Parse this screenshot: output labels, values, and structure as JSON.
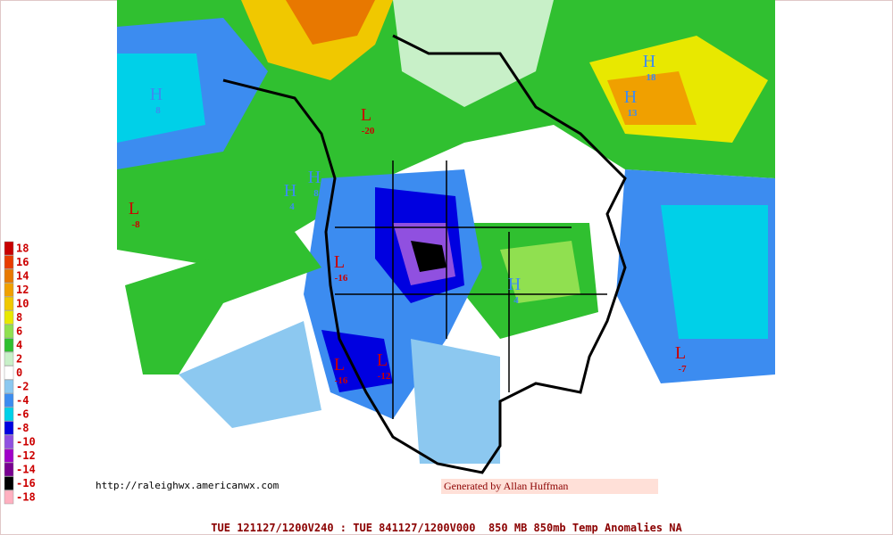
{
  "legend": {
    "items": [
      {
        "label": "18",
        "color": "#c80000"
      },
      {
        "label": "16",
        "color": "#e83c00"
      },
      {
        "label": "14",
        "color": "#e87800"
      },
      {
        "label": "12",
        "color": "#f0a000"
      },
      {
        "label": "10",
        "color": "#f0c800"
      },
      {
        "label": "8",
        "color": "#e8e800"
      },
      {
        "label": "6",
        "color": "#90e050"
      },
      {
        "label": "4",
        "color": "#30c030"
      },
      {
        "label": "2",
        "color": "#c8f0c8"
      },
      {
        "label": "0",
        "color": "#ffffff"
      },
      {
        "label": "-2",
        "color": "#8cc8f0"
      },
      {
        "label": "-4",
        "color": "#3c8cf0"
      },
      {
        "label": "-6",
        "color": "#00d0e8"
      },
      {
        "label": "-8",
        "color": "#0000e0"
      },
      {
        "label": "-10",
        "color": "#9050e0"
      },
      {
        "label": "-12",
        "color": "#a000c8"
      },
      {
        "label": "-14",
        "color": "#780090"
      },
      {
        "label": "-16",
        "color": "#000000"
      },
      {
        "label": "-18",
        "color": "#ffb0c0"
      }
    ]
  },
  "map_labels": [
    {
      "letter": "L",
      "value": "-8"
    },
    {
      "letter": "H",
      "value": "8"
    },
    {
      "letter": "H",
      "value": "4"
    },
    {
      "letter": "L",
      "value": "-16"
    },
    {
      "letter": "L",
      "value": "-16"
    },
    {
      "letter": "H",
      "value": "13"
    },
    {
      "letter": "H",
      "value": "18"
    },
    {
      "letter": "H",
      "value": "4"
    },
    {
      "letter": "L",
      "value": "-7"
    },
    {
      "letter": "L",
      "value": "-12"
    },
    {
      "letter": "H",
      "value": "8"
    },
    {
      "letter": "L",
      "value": "-20"
    }
  ],
  "footer": {
    "caption": "TUE 121127/1200V240 : TUE 841127/1200V000  850 MB 850mb Temp Anomalies NA",
    "url": "http://raleighwx.americanwx.com",
    "credit": "Generated by Allan Huffman"
  }
}
